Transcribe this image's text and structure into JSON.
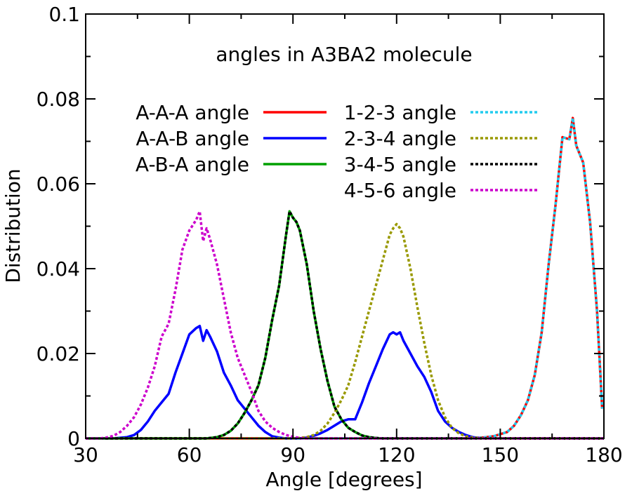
{
  "chart_data": {
    "type": "line",
    "title": "",
    "annotation": "angles in A3BA2 molecule",
    "xlabel": "Angle [degrees]",
    "ylabel": "Distribution",
    "xlim": [
      30,
      180
    ],
    "ylim": [
      0,
      0.1
    ],
    "xticks": [
      30,
      60,
      90,
      120,
      150,
      180
    ],
    "xtick_labels": [
      "30",
      "60",
      "90",
      "120",
      "150",
      "180"
    ],
    "yticks": [
      0,
      0.02,
      0.04,
      0.06,
      0.08,
      0.1
    ],
    "ytick_labels": [
      "0",
      "0.02",
      "0.04",
      "0.06",
      "0.08",
      "0.1"
    ],
    "grid": false,
    "legend_placement": "upper-left, two columns",
    "series": [
      {
        "name": "A-A-A angle",
        "color": "#ff0000",
        "style": "solid",
        "legend_column": 1,
        "x": [
          30,
          130,
          140,
          145,
          148,
          150,
          152,
          154,
          156,
          158,
          160,
          162,
          164,
          166,
          168,
          170,
          171,
          172,
          174,
          176,
          178,
          179.5
        ],
        "y": [
          0,
          0,
          0,
          0.0002,
          0.0005,
          0.001,
          0.0015,
          0.003,
          0.0055,
          0.009,
          0.015,
          0.025,
          0.041,
          0.055,
          0.071,
          0.0705,
          0.0755,
          0.069,
          0.065,
          0.051,
          0.03,
          0.007
        ]
      },
      {
        "name": "A-A-B angle",
        "color": "#0000ff",
        "style": "solid",
        "legend_column": 1,
        "x": [
          30,
          38,
          42,
          44,
          46,
          48,
          50,
          52,
          54,
          56,
          58,
          60,
          62,
          63,
          64,
          65,
          66,
          68,
          70,
          72,
          74,
          76,
          78,
          80,
          82,
          84,
          86,
          88,
          90,
          92,
          94,
          96,
          98,
          100,
          102,
          104,
          106,
          108,
          110,
          112,
          114,
          116,
          118,
          119,
          120,
          121,
          122,
          124,
          126,
          128,
          130,
          132,
          134,
          136,
          138,
          140,
          142,
          144,
          146,
          150,
          180
        ],
        "y": [
          0,
          0,
          0.0003,
          0.0008,
          0.002,
          0.004,
          0.0065,
          0.0085,
          0.0105,
          0.0155,
          0.02,
          0.0245,
          0.026,
          0.0265,
          0.023,
          0.0255,
          0.024,
          0.0205,
          0.0155,
          0.0125,
          0.009,
          0.007,
          0.005,
          0.003,
          0.0015,
          0.0005,
          0.0002,
          0,
          0,
          0,
          0.0002,
          0.0006,
          0.0012,
          0.002,
          0.003,
          0.004,
          0.0045,
          0.0045,
          0.0085,
          0.013,
          0.017,
          0.021,
          0.0245,
          0.025,
          0.0245,
          0.025,
          0.023,
          0.02,
          0.017,
          0.0145,
          0.011,
          0.0065,
          0.004,
          0.0025,
          0.0015,
          0.0008,
          0.0003,
          0.0001,
          0,
          0,
          0
        ]
      },
      {
        "name": "A-B-A angle",
        "color": "#00a000",
        "style": "solid",
        "legend_column": 1,
        "x": [
          30,
          65,
          68,
          70,
          72,
          74,
          76,
          78,
          80,
          82,
          84,
          86,
          88,
          89,
          90,
          91,
          92,
          94,
          96,
          98,
          100,
          102,
          104,
          106,
          108,
          110,
          112,
          114,
          116,
          180
        ],
        "y": [
          0,
          0,
          0.0003,
          0.0008,
          0.0018,
          0.0035,
          0.006,
          0.009,
          0.0125,
          0.019,
          0.028,
          0.036,
          0.048,
          0.0535,
          0.052,
          0.051,
          0.049,
          0.041,
          0.03,
          0.021,
          0.0135,
          0.0075,
          0.0045,
          0.0025,
          0.0015,
          0.0007,
          0.0003,
          0.0001,
          0,
          0
        ]
      },
      {
        "name": "1-2-3 angle",
        "color": "#22ccee",
        "style": "dotted",
        "legend_column": 2,
        "x": [
          30,
          130,
          140,
          145,
          148,
          150,
          152,
          154,
          156,
          158,
          160,
          162,
          164,
          166,
          168,
          170,
          171,
          172,
          174,
          176,
          178,
          179.5
        ],
        "y": [
          0,
          0,
          0,
          0.0002,
          0.0005,
          0.001,
          0.0015,
          0.003,
          0.0055,
          0.009,
          0.015,
          0.025,
          0.041,
          0.055,
          0.071,
          0.0705,
          0.0755,
          0.069,
          0.065,
          0.051,
          0.03,
          0.007
        ]
      },
      {
        "name": "2-3-4 angle",
        "color": "#999900",
        "style": "dotted",
        "legend_column": 2,
        "x": [
          30,
          90,
          94,
          96,
          98,
          100,
          102,
          104,
          106,
          108,
          110,
          112,
          114,
          116,
          118,
          119,
          120,
          121,
          122,
          124,
          126,
          128,
          130,
          132,
          134,
          136,
          138,
          140,
          142,
          144,
          146,
          180
        ],
        "y": [
          0,
          0,
          0.0003,
          0.0008,
          0.0018,
          0.0035,
          0.006,
          0.009,
          0.0125,
          0.018,
          0.024,
          0.03,
          0.036,
          0.042,
          0.048,
          0.0495,
          0.0505,
          0.0495,
          0.0475,
          0.04,
          0.031,
          0.0225,
          0.015,
          0.009,
          0.005,
          0.0025,
          0.0012,
          0.0005,
          0.0002,
          0.0001,
          0,
          0
        ]
      },
      {
        "name": "3-4-5 angle",
        "color": "#000000",
        "style": "dotted",
        "legend_column": 2,
        "x": [
          30,
          65,
          68,
          70,
          72,
          74,
          76,
          78,
          80,
          82,
          84,
          86,
          88,
          89,
          90,
          91,
          92,
          94,
          96,
          98,
          100,
          102,
          104,
          106,
          108,
          110,
          112,
          114,
          116,
          180
        ],
        "y": [
          0,
          0,
          0.0003,
          0.0008,
          0.0018,
          0.0035,
          0.006,
          0.009,
          0.0125,
          0.019,
          0.028,
          0.036,
          0.048,
          0.0535,
          0.052,
          0.051,
          0.049,
          0.041,
          0.03,
          0.021,
          0.0135,
          0.0075,
          0.0045,
          0.0025,
          0.0015,
          0.0007,
          0.0003,
          0.0001,
          0,
          0
        ]
      },
      {
        "name": "4-5-6 angle",
        "color": "#cc00cc",
        "style": "dotted",
        "legend_column": 2,
        "x": [
          30,
          34,
          36,
          38,
          40,
          42,
          44,
          46,
          48,
          50,
          52,
          54,
          56,
          58,
          60,
          62,
          63,
          64,
          65,
          66,
          68,
          70,
          72,
          74,
          76,
          78,
          80,
          82,
          84,
          86,
          88,
          90,
          92,
          94,
          180
        ],
        "y": [
          0,
          0,
          0.0002,
          0.0006,
          0.0015,
          0.003,
          0.005,
          0.008,
          0.012,
          0.017,
          0.024,
          0.027,
          0.035,
          0.0445,
          0.049,
          0.0515,
          0.0535,
          0.0465,
          0.0495,
          0.047,
          0.041,
          0.033,
          0.025,
          0.019,
          0.015,
          0.011,
          0.0065,
          0.004,
          0.0025,
          0.0015,
          0.0008,
          0.0004,
          0.0001,
          0,
          0
        ]
      }
    ]
  }
}
